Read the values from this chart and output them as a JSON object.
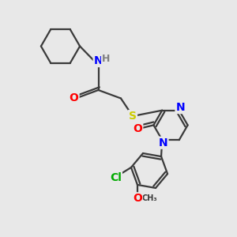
{
  "bg_color": "#e8e8e8",
  "bond_color": "#3a3a3a",
  "atom_colors": {
    "N": "#0000ff",
    "O": "#ff0000",
    "S": "#cccc00",
    "Cl": "#00aa00",
    "H": "#808080",
    "C": "#3a3a3a"
  },
  "bond_width": 1.6,
  "font_size": 10
}
